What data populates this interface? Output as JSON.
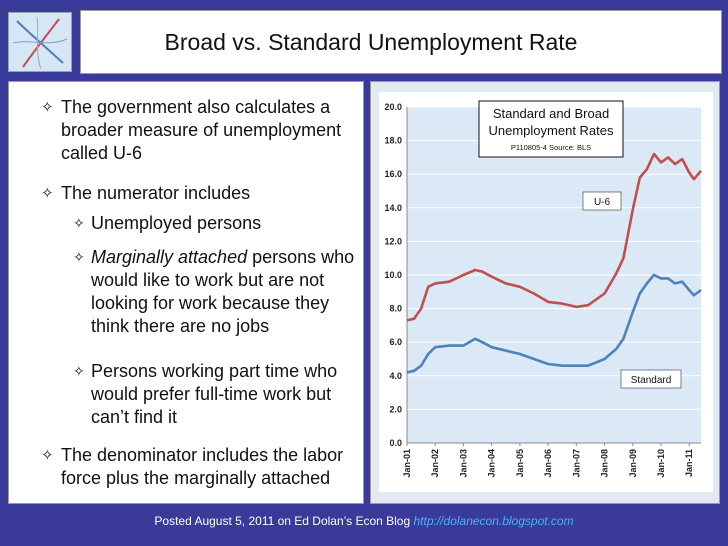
{
  "slide": {
    "title": "Broad vs. Standard Unemployment Rate",
    "bullets": [
      {
        "level": 1,
        "text": "The government also calculates a broader measure of unemployment called U-6"
      },
      {
        "level": 1,
        "text": "The numerator includes"
      },
      {
        "level": 2,
        "text": "Unemployed persons"
      },
      {
        "level": 2,
        "italic_lead": "Marginally attached",
        "text": " persons who would like to work but are not looking for work because they think there are no jobs"
      },
      {
        "level": 2,
        "text": "Persons working part time who would prefer full-time work but can’t find it"
      },
      {
        "level": 1,
        "text": "The denominator includes the labor force plus the marginally attached"
      }
    ],
    "footer_text": "Posted August 5, 2011 on Ed Dolan’s Econ Blog ",
    "footer_link": "http://dolanecon.blogspot.com"
  },
  "chart_data": {
    "type": "line",
    "title": "Standard and Broad Unemployment Rates",
    "subtitle": "P110805-4 Source: BLS",
    "xlabel": "",
    "ylabel": "",
    "ylim": [
      0,
      20
    ],
    "yticks": [
      "0.0",
      "2.0",
      "4.0",
      "6.0",
      "8.0",
      "10.0",
      "12.0",
      "14.0",
      "16.0",
      "18.0",
      "20.0"
    ],
    "x_start": "Jan-01",
    "x_end": "Jun-11",
    "xtick_labels": [
      "Jan-01",
      "Jan-02",
      "Jan-03",
      "Jan-04",
      "Jan-05",
      "Jan-06",
      "Jan-07",
      "Jan-08",
      "Jan-09",
      "Jan-10",
      "Jan-11"
    ],
    "grid": true,
    "series": [
      {
        "name": "U-6",
        "color": "#c0504d",
        "x": [
          "Jan-01",
          "Apr-01",
          "Jul-01",
          "Oct-01",
          "Jan-02",
          "Jul-02",
          "Jan-03",
          "Jun-03",
          "Sep-03",
          "Jan-04",
          "Jul-04",
          "Jan-05",
          "Jul-05",
          "Jan-06",
          "Jul-06",
          "Jan-07",
          "Jun-07",
          "Jan-08",
          "Jun-08",
          "Sep-08",
          "Jan-09",
          "Apr-09",
          "Jul-09",
          "Oct-09",
          "Jan-10",
          "Apr-10",
          "Jul-10",
          "Oct-10",
          "Jan-11",
          "Mar-11",
          "Jun-11"
        ],
        "values": [
          7.3,
          7.4,
          8.0,
          9.3,
          9.5,
          9.6,
          10.0,
          10.3,
          10.2,
          9.9,
          9.5,
          9.3,
          8.9,
          8.4,
          8.3,
          8.1,
          8.2,
          8.9,
          10.1,
          11.0,
          13.9,
          15.8,
          16.3,
          17.2,
          16.7,
          17.0,
          16.6,
          16.9,
          16.1,
          15.7,
          16.2
        ]
      },
      {
        "name": "Standard",
        "color": "#4f81bd",
        "x": [
          "Jan-01",
          "Apr-01",
          "Jul-01",
          "Oct-01",
          "Jan-02",
          "Jul-02",
          "Jan-03",
          "Jun-03",
          "Sep-03",
          "Jan-04",
          "Jul-04",
          "Jan-05",
          "Jul-05",
          "Jan-06",
          "Jul-06",
          "Jan-07",
          "Jun-07",
          "Jan-08",
          "Jun-08",
          "Sep-08",
          "Jan-09",
          "Apr-09",
          "Jul-09",
          "Oct-09",
          "Jan-10",
          "Apr-10",
          "Jul-10",
          "Oct-10",
          "Jan-11",
          "Mar-11",
          "Jun-11"
        ],
        "values": [
          4.2,
          4.3,
          4.6,
          5.3,
          5.7,
          5.8,
          5.8,
          6.2,
          6.0,
          5.7,
          5.5,
          5.3,
          5.0,
          4.7,
          4.6,
          4.6,
          4.6,
          5.0,
          5.6,
          6.2,
          7.8,
          8.9,
          9.5,
          10.0,
          9.8,
          9.8,
          9.5,
          9.6,
          9.1,
          8.8,
          9.1
        ]
      }
    ]
  }
}
